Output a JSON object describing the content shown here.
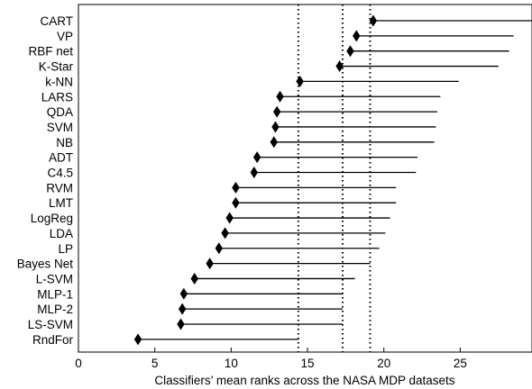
{
  "chart_data": {
    "type": "scatter",
    "title": "",
    "xlabel": "Classifiers’ mean ranks across the NASA MDP datasets",
    "ylabel": "",
    "xlim": [
      0,
      29.7
    ],
    "xticks": [
      0,
      5,
      10,
      15,
      20,
      25
    ],
    "grid": false,
    "critical_lines": [
      14.4,
      17.3,
      19.1
    ],
    "classifiers": [
      {
        "name": "CART",
        "rank": 19.3,
        "interval_end": 29.7
      },
      {
        "name": "VP",
        "rank": 18.2,
        "interval_end": 28.5
      },
      {
        "name": "RBF net",
        "rank": 17.8,
        "interval_end": 28.2
      },
      {
        "name": "K-Star",
        "rank": 17.1,
        "interval_end": 27.5
      },
      {
        "name": "k-NN",
        "rank": 14.5,
        "interval_end": 24.9
      },
      {
        "name": "LARS",
        "rank": 13.2,
        "interval_end": 23.7
      },
      {
        "name": "QDA",
        "rank": 13.0,
        "interval_end": 23.5
      },
      {
        "name": "SVM",
        "rank": 12.9,
        "interval_end": 23.4
      },
      {
        "name": "NB",
        "rank": 12.8,
        "interval_end": 23.3
      },
      {
        "name": "ADT",
        "rank": 11.7,
        "interval_end": 22.2
      },
      {
        "name": "C4.5",
        "rank": 11.5,
        "interval_end": 22.1
      },
      {
        "name": "RVM",
        "rank": 10.3,
        "interval_end": 20.8
      },
      {
        "name": "LMT",
        "rank": 10.3,
        "interval_end": 20.8
      },
      {
        "name": "LogReg",
        "rank": 9.9,
        "interval_end": 20.4
      },
      {
        "name": "LDA",
        "rank": 9.6,
        "interval_end": 20.1
      },
      {
        "name": "LP",
        "rank": 9.2,
        "interval_end": 19.7
      },
      {
        "name": "Bayes Net",
        "rank": 8.6,
        "interval_end": 19.1
      },
      {
        "name": "L-SVM",
        "rank": 7.6,
        "interval_end": 18.1
      },
      {
        "name": "MLP-1",
        "rank": 6.9,
        "interval_end": 17.3
      },
      {
        "name": "MLP-2",
        "rank": 6.8,
        "interval_end": 17.3
      },
      {
        "name": "LS-SVM",
        "rank": 6.7,
        "interval_end": 17.3
      },
      {
        "name": "RndFor",
        "rank": 3.9,
        "interval_end": 14.4
      }
    ]
  }
}
